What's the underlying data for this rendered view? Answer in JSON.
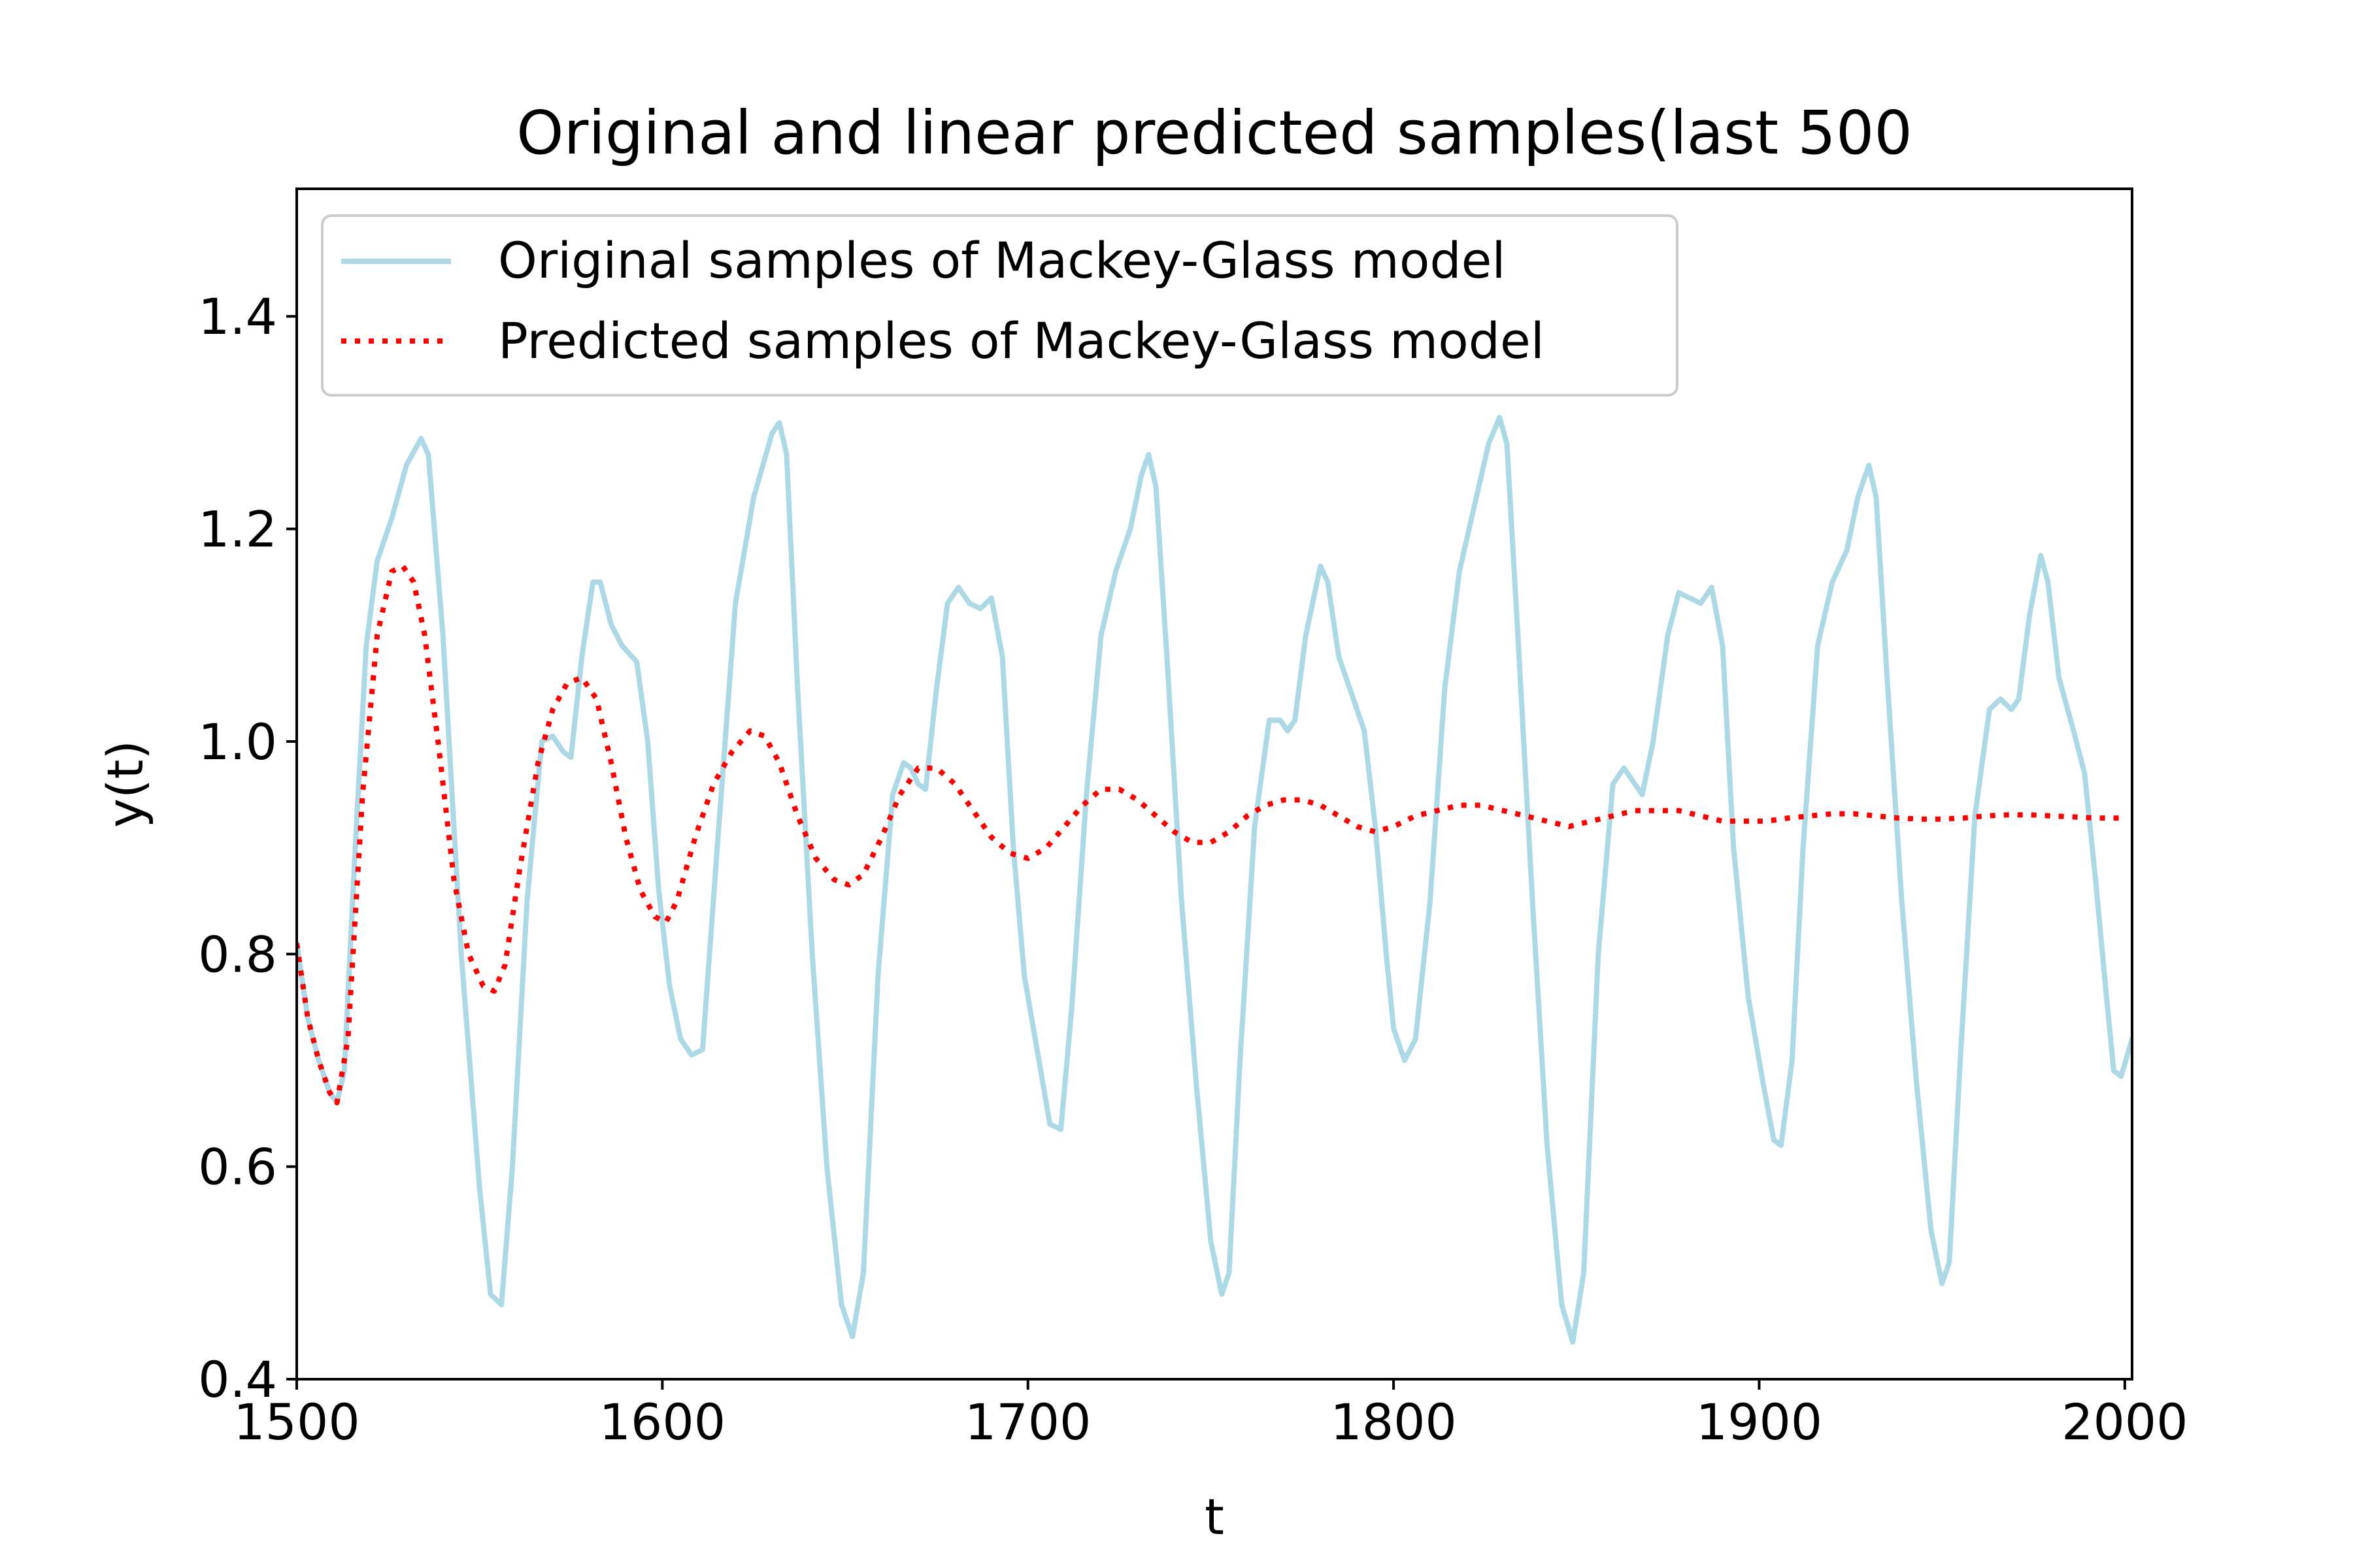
{
  "chart_data": {
    "type": "line",
    "title": "Original and linear predicted samples(last 500",
    "xlabel": "t",
    "ylabel": "y(t)",
    "xlim": [
      1500,
      2002
    ],
    "ylim": [
      0.4,
      1.52
    ],
    "xticks": [
      1500,
      1600,
      1700,
      1800,
      1900,
      2000
    ],
    "yticks": [
      0.4,
      0.6,
      0.8,
      1.0,
      1.2,
      1.4
    ],
    "xtick_labels": [
      "1500",
      "1600",
      "1700",
      "1800",
      "1900",
      "2000"
    ],
    "ytick_labels": [
      "0.4",
      "0.6",
      "0.8",
      "1.0",
      "1.2",
      "1.4"
    ],
    "legend_position": "top-left",
    "grid": false,
    "series": [
      {
        "name": "Original samples of Mackey-Glass model",
        "color": "#add8e6",
        "style": "solid",
        "points": [
          [
            1500,
            0.81
          ],
          [
            1503,
            0.74
          ],
          [
            1506,
            0.7
          ],
          [
            1509,
            0.67
          ],
          [
            1511,
            0.66
          ],
          [
            1513,
            0.69
          ],
          [
            1516,
            0.9
          ],
          [
            1519,
            1.09
          ],
          [
            1522,
            1.17
          ],
          [
            1526,
            1.21
          ],
          [
            1530,
            1.26
          ],
          [
            1534,
            1.285
          ],
          [
            1536,
            1.27
          ],
          [
            1540,
            1.1
          ],
          [
            1545,
            0.8
          ],
          [
            1550,
            0.58
          ],
          [
            1553,
            0.48
          ],
          [
            1556,
            0.47
          ],
          [
            1559,
            0.6
          ],
          [
            1563,
            0.85
          ],
          [
            1567,
            1.0
          ],
          [
            1570,
            1.005
          ],
          [
            1573,
            0.99
          ],
          [
            1575,
            0.985
          ],
          [
            1578,
            1.08
          ],
          [
            1581,
            1.15
          ],
          [
            1583,
            1.15
          ],
          [
            1586,
            1.11
          ],
          [
            1589,
            1.09
          ],
          [
            1593,
            1.075
          ],
          [
            1596,
            1.0
          ],
          [
            1599,
            0.86
          ],
          [
            1602,
            0.77
          ],
          [
            1605,
            0.72
          ],
          [
            1608,
            0.705
          ],
          [
            1611,
            0.71
          ],
          [
            1615,
            0.9
          ],
          [
            1620,
            1.13
          ],
          [
            1625,
            1.23
          ],
          [
            1630,
            1.29
          ],
          [
            1632,
            1.3
          ],
          [
            1634,
            1.27
          ],
          [
            1637,
            1.05
          ],
          [
            1641,
            0.8
          ],
          [
            1645,
            0.6
          ],
          [
            1649,
            0.47
          ],
          [
            1652,
            0.44
          ],
          [
            1655,
            0.5
          ],
          [
            1659,
            0.78
          ],
          [
            1663,
            0.95
          ],
          [
            1666,
            0.98
          ],
          [
            1668,
            0.975
          ],
          [
            1670,
            0.96
          ],
          [
            1672,
            0.955
          ],
          [
            1675,
            1.05
          ],
          [
            1678,
            1.13
          ],
          [
            1681,
            1.145
          ],
          [
            1684,
            1.13
          ],
          [
            1687,
            1.125
          ],
          [
            1690,
            1.135
          ],
          [
            1693,
            1.08
          ],
          [
            1696,
            0.9
          ],
          [
            1699,
            0.78
          ],
          [
            1703,
            0.7
          ],
          [
            1706,
            0.64
          ],
          [
            1709,
            0.635
          ],
          [
            1712,
            0.75
          ],
          [
            1716,
            0.95
          ],
          [
            1720,
            1.1
          ],
          [
            1724,
            1.16
          ],
          [
            1728,
            1.2
          ],
          [
            1731,
            1.25
          ],
          [
            1733,
            1.27
          ],
          [
            1735,
            1.24
          ],
          [
            1738,
            1.08
          ],
          [
            1742,
            0.85
          ],
          [
            1746,
            0.68
          ],
          [
            1750,
            0.53
          ],
          [
            1753,
            0.48
          ],
          [
            1755,
            0.5
          ],
          [
            1758,
            0.7
          ],
          [
            1762,
            0.92
          ],
          [
            1766,
            1.02
          ],
          [
            1769,
            1.02
          ],
          [
            1771,
            1.01
          ],
          [
            1773,
            1.02
          ],
          [
            1776,
            1.1
          ],
          [
            1780,
            1.165
          ],
          [
            1782,
            1.15
          ],
          [
            1785,
            1.08
          ],
          [
            1789,
            1.04
          ],
          [
            1792,
            1.01
          ],
          [
            1795,
            0.92
          ],
          [
            1798,
            0.8
          ],
          [
            1800,
            0.73
          ],
          [
            1803,
            0.7
          ],
          [
            1806,
            0.72
          ],
          [
            1810,
            0.85
          ],
          [
            1814,
            1.05
          ],
          [
            1818,
            1.16
          ],
          [
            1822,
            1.22
          ],
          [
            1826,
            1.28
          ],
          [
            1829,
            1.305
          ],
          [
            1831,
            1.28
          ],
          [
            1834,
            1.1
          ],
          [
            1838,
            0.85
          ],
          [
            1842,
            0.62
          ],
          [
            1846,
            0.47
          ],
          [
            1849,
            0.435
          ],
          [
            1852,
            0.5
          ],
          [
            1856,
            0.8
          ],
          [
            1860,
            0.96
          ],
          [
            1863,
            0.975
          ],
          [
            1866,
            0.96
          ],
          [
            1868,
            0.95
          ],
          [
            1871,
            1.0
          ],
          [
            1875,
            1.1
          ],
          [
            1878,
            1.14
          ],
          [
            1881,
            1.135
          ],
          [
            1884,
            1.13
          ],
          [
            1887,
            1.145
          ],
          [
            1890,
            1.09
          ],
          [
            1893,
            0.9
          ],
          [
            1897,
            0.76
          ],
          [
            1901,
            0.68
          ],
          [
            1904,
            0.625
          ],
          [
            1906,
            0.62
          ],
          [
            1909,
            0.7
          ],
          [
            1912,
            0.9
          ],
          [
            1916,
            1.09
          ],
          [
            1920,
            1.15
          ],
          [
            1924,
            1.18
          ],
          [
            1927,
            1.23
          ],
          [
            1930,
            1.26
          ],
          [
            1932,
            1.23
          ],
          [
            1935,
            1.06
          ],
          [
            1939,
            0.85
          ],
          [
            1943,
            0.68
          ],
          [
            1947,
            0.54
          ],
          [
            1950,
            0.49
          ],
          [
            1952,
            0.51
          ],
          [
            1955,
            0.7
          ],
          [
            1959,
            0.93
          ],
          [
            1963,
            1.03
          ],
          [
            1966,
            1.04
          ],
          [
            1969,
            1.03
          ],
          [
            1971,
            1.04
          ],
          [
            1974,
            1.12
          ],
          [
            1977,
            1.175
          ],
          [
            1979,
            1.15
          ],
          [
            1982,
            1.06
          ],
          [
            1986,
            1.01
          ],
          [
            1989,
            0.97
          ],
          [
            1992,
            0.87
          ],
          [
            1995,
            0.76
          ],
          [
            1997,
            0.69
          ],
          [
            1999,
            0.685
          ],
          [
            2002,
            0.72
          ]
        ]
      },
      {
        "name": "Predicted samples of Mackey-Glass model",
        "color": "#ff0000",
        "style": "dotted",
        "points": [
          [
            1500,
            0.81
          ],
          [
            1503,
            0.74
          ],
          [
            1506,
            0.7
          ],
          [
            1509,
            0.67
          ],
          [
            1511,
            0.66
          ],
          [
            1514,
            0.72
          ],
          [
            1518,
            0.95
          ],
          [
            1522,
            1.1
          ],
          [
            1526,
            1.16
          ],
          [
            1529,
            1.165
          ],
          [
            1532,
            1.15
          ],
          [
            1535,
            1.1
          ],
          [
            1539,
            0.99
          ],
          [
            1543,
            0.87
          ],
          [
            1547,
            0.8
          ],
          [
            1551,
            0.77
          ],
          [
            1554,
            0.765
          ],
          [
            1557,
            0.79
          ],
          [
            1561,
            0.88
          ],
          [
            1566,
            0.98
          ],
          [
            1570,
            1.03
          ],
          [
            1574,
            1.055
          ],
          [
            1578,
            1.06
          ],
          [
            1582,
            1.04
          ],
          [
            1586,
            0.98
          ],
          [
            1590,
            0.91
          ],
          [
            1594,
            0.86
          ],
          [
            1598,
            0.835
          ],
          [
            1601,
            0.83
          ],
          [
            1604,
            0.85
          ],
          [
            1609,
            0.91
          ],
          [
            1614,
            0.96
          ],
          [
            1619,
            0.99
          ],
          [
            1624,
            1.01
          ],
          [
            1628,
            1.005
          ],
          [
            1632,
            0.98
          ],
          [
            1637,
            0.93
          ],
          [
            1642,
            0.89
          ],
          [
            1647,
            0.87
          ],
          [
            1651,
            0.865
          ],
          [
            1655,
            0.875
          ],
          [
            1660,
            0.91
          ],
          [
            1665,
            0.95
          ],
          [
            1670,
            0.975
          ],
          [
            1675,
            0.975
          ],
          [
            1680,
            0.96
          ],
          [
            1685,
            0.935
          ],
          [
            1690,
            0.91
          ],
          [
            1695,
            0.895
          ],
          [
            1700,
            0.89
          ],
          [
            1705,
            0.9
          ],
          [
            1710,
            0.92
          ],
          [
            1715,
            0.94
          ],
          [
            1720,
            0.955
          ],
          [
            1725,
            0.955
          ],
          [
            1730,
            0.945
          ],
          [
            1735,
            0.93
          ],
          [
            1740,
            0.915
          ],
          [
            1745,
            0.905
          ],
          [
            1750,
            0.905
          ],
          [
            1755,
            0.915
          ],
          [
            1760,
            0.93
          ],
          [
            1765,
            0.94
          ],
          [
            1770,
            0.945
          ],
          [
            1775,
            0.945
          ],
          [
            1780,
            0.94
          ],
          [
            1785,
            0.93
          ],
          [
            1790,
            0.92
          ],
          [
            1795,
            0.915
          ],
          [
            1800,
            0.92
          ],
          [
            1806,
            0.93
          ],
          [
            1812,
            0.935
          ],
          [
            1818,
            0.94
          ],
          [
            1824,
            0.94
          ],
          [
            1830,
            0.935
          ],
          [
            1836,
            0.93
          ],
          [
            1842,
            0.925
          ],
          [
            1848,
            0.92
          ],
          [
            1854,
            0.925
          ],
          [
            1860,
            0.93
          ],
          [
            1866,
            0.935
          ],
          [
            1872,
            0.935
          ],
          [
            1878,
            0.935
          ],
          [
            1884,
            0.93
          ],
          [
            1890,
            0.925
          ],
          [
            1896,
            0.925
          ],
          [
            1902,
            0.925
          ],
          [
            1908,
            0.928
          ],
          [
            1914,
            0.93
          ],
          [
            1920,
            0.932
          ],
          [
            1926,
            0.932
          ],
          [
            1932,
            0.93
          ],
          [
            1938,
            0.928
          ],
          [
            1944,
            0.927
          ],
          [
            1950,
            0.927
          ],
          [
            1956,
            0.928
          ],
          [
            1962,
            0.93
          ],
          [
            1968,
            0.931
          ],
          [
            1974,
            0.931
          ],
          [
            1980,
            0.93
          ],
          [
            1986,
            0.929
          ],
          [
            1992,
            0.928
          ],
          [
            2000,
            0.928
          ]
        ]
      }
    ]
  }
}
